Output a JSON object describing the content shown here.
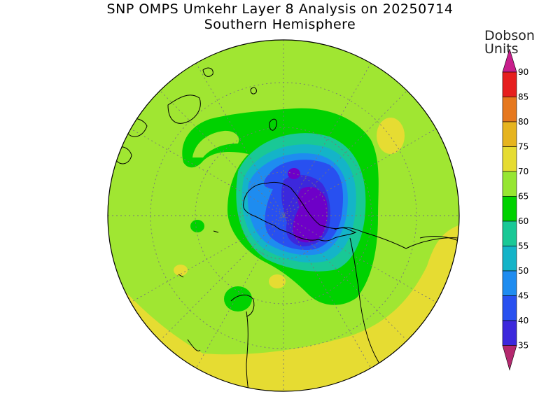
{
  "title": "SNP OMPS Umkehr Layer 8 Analysis on 20250714",
  "subtitle": "Southern Hemisphere",
  "legend": {
    "title_line1": "Dobson",
    "title_line2": "Units",
    "levels": [
      35,
      40,
      45,
      50,
      55,
      60,
      65,
      70,
      75,
      80,
      85,
      90
    ],
    "labels": [
      "35",
      "40",
      "45",
      "50",
      "55",
      "60",
      "65",
      "70",
      "75",
      "80",
      "85",
      "90"
    ],
    "colors": [
      "#6e00c8",
      "#3c28dc",
      "#2850f0",
      "#1e8cf0",
      "#14b4c8",
      "#19c896",
      "#00d200",
      "#96e632",
      "#e6dc32",
      "#e6b41e",
      "#e6781e",
      "#e61e1e"
    ],
    "under_color": "#b4286e",
    "over_color": "#c81e8c"
  },
  "map": {
    "projection": "south-polar-stereographic",
    "background_color": "#a0e632",
    "gridlines": true
  }
}
